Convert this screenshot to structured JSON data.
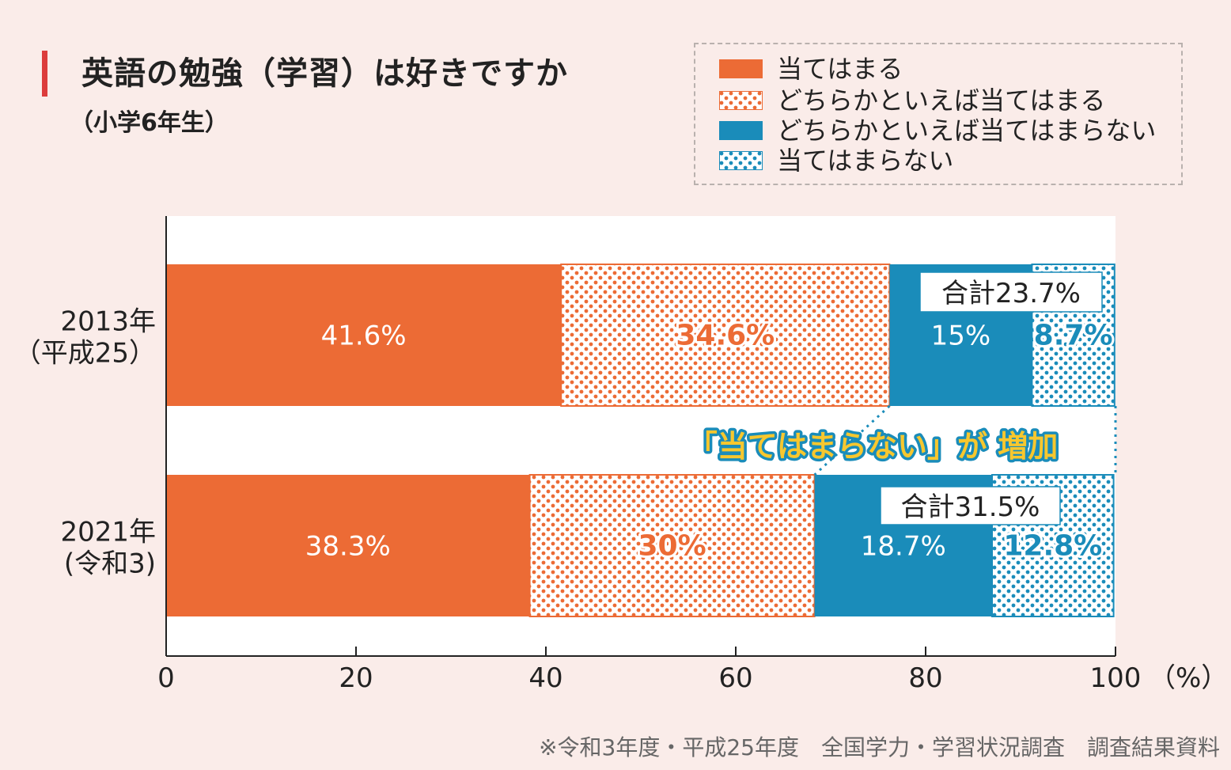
{
  "title": "英語の勉強（学習）は好きですか",
  "subtitle": "（小学6年生）",
  "source_note": "※令和3年度・平成25年度　全国学力・学習状況調査　調査結果資料",
  "callout": "「当てはまらない」が 増加",
  "legend": [
    {
      "label": "当てはまる",
      "pattern": "solid-orange"
    },
    {
      "label": "どちらかといえば当てはまる",
      "pattern": "dots-orange"
    },
    {
      "label": "どちらかといえば当てはまらない",
      "pattern": "solid-blue"
    },
    {
      "label": "当てはまらない",
      "pattern": "dots-blue"
    }
  ],
  "colors": {
    "orange": "#ec6b35",
    "blue": "#1a8cba",
    "background": "#faece9",
    "callout_text": "#f7c72e",
    "title_accent": "#dc3c3c"
  },
  "chart_data": {
    "type": "bar",
    "orientation": "horizontal",
    "stacked": true,
    "categories": [
      {
        "line1": "2013年",
        "line2": "（平成25）"
      },
      {
        "line1": "2021年",
        "line2": "(令和3)"
      }
    ],
    "series": [
      {
        "name": "当てはまる",
        "values": [
          41.6,
          38.3
        ],
        "labels": [
          "41.6%",
          "38.3%"
        ],
        "color": "#ec6b35",
        "pattern": "solid"
      },
      {
        "name": "どちらかといえば当てはまる",
        "values": [
          34.6,
          30
        ],
        "labels": [
          "34.6%",
          "30%"
        ],
        "color": "#ec6b35",
        "pattern": "dots"
      },
      {
        "name": "どちらかといえば当てはまらない",
        "values": [
          15,
          18.7
        ],
        "labels": [
          "15%",
          "18.7%"
        ],
        "color": "#1a8cba",
        "pattern": "solid"
      },
      {
        "name": "当てはまらない",
        "values": [
          8.7,
          12.8
        ],
        "labels": [
          "8.7%",
          "12.8%"
        ],
        "color": "#1a8cba",
        "pattern": "dots"
      }
    ],
    "totals": [
      "合計23.7%",
      "合計31.5%"
    ],
    "xlim": [
      0,
      100
    ],
    "xticks": [
      0,
      20,
      40,
      60,
      80,
      100
    ],
    "xticklabels": [
      "0",
      "20",
      "40",
      "60",
      "80",
      "100"
    ],
    "x_unit": "（%）",
    "grid": false
  }
}
